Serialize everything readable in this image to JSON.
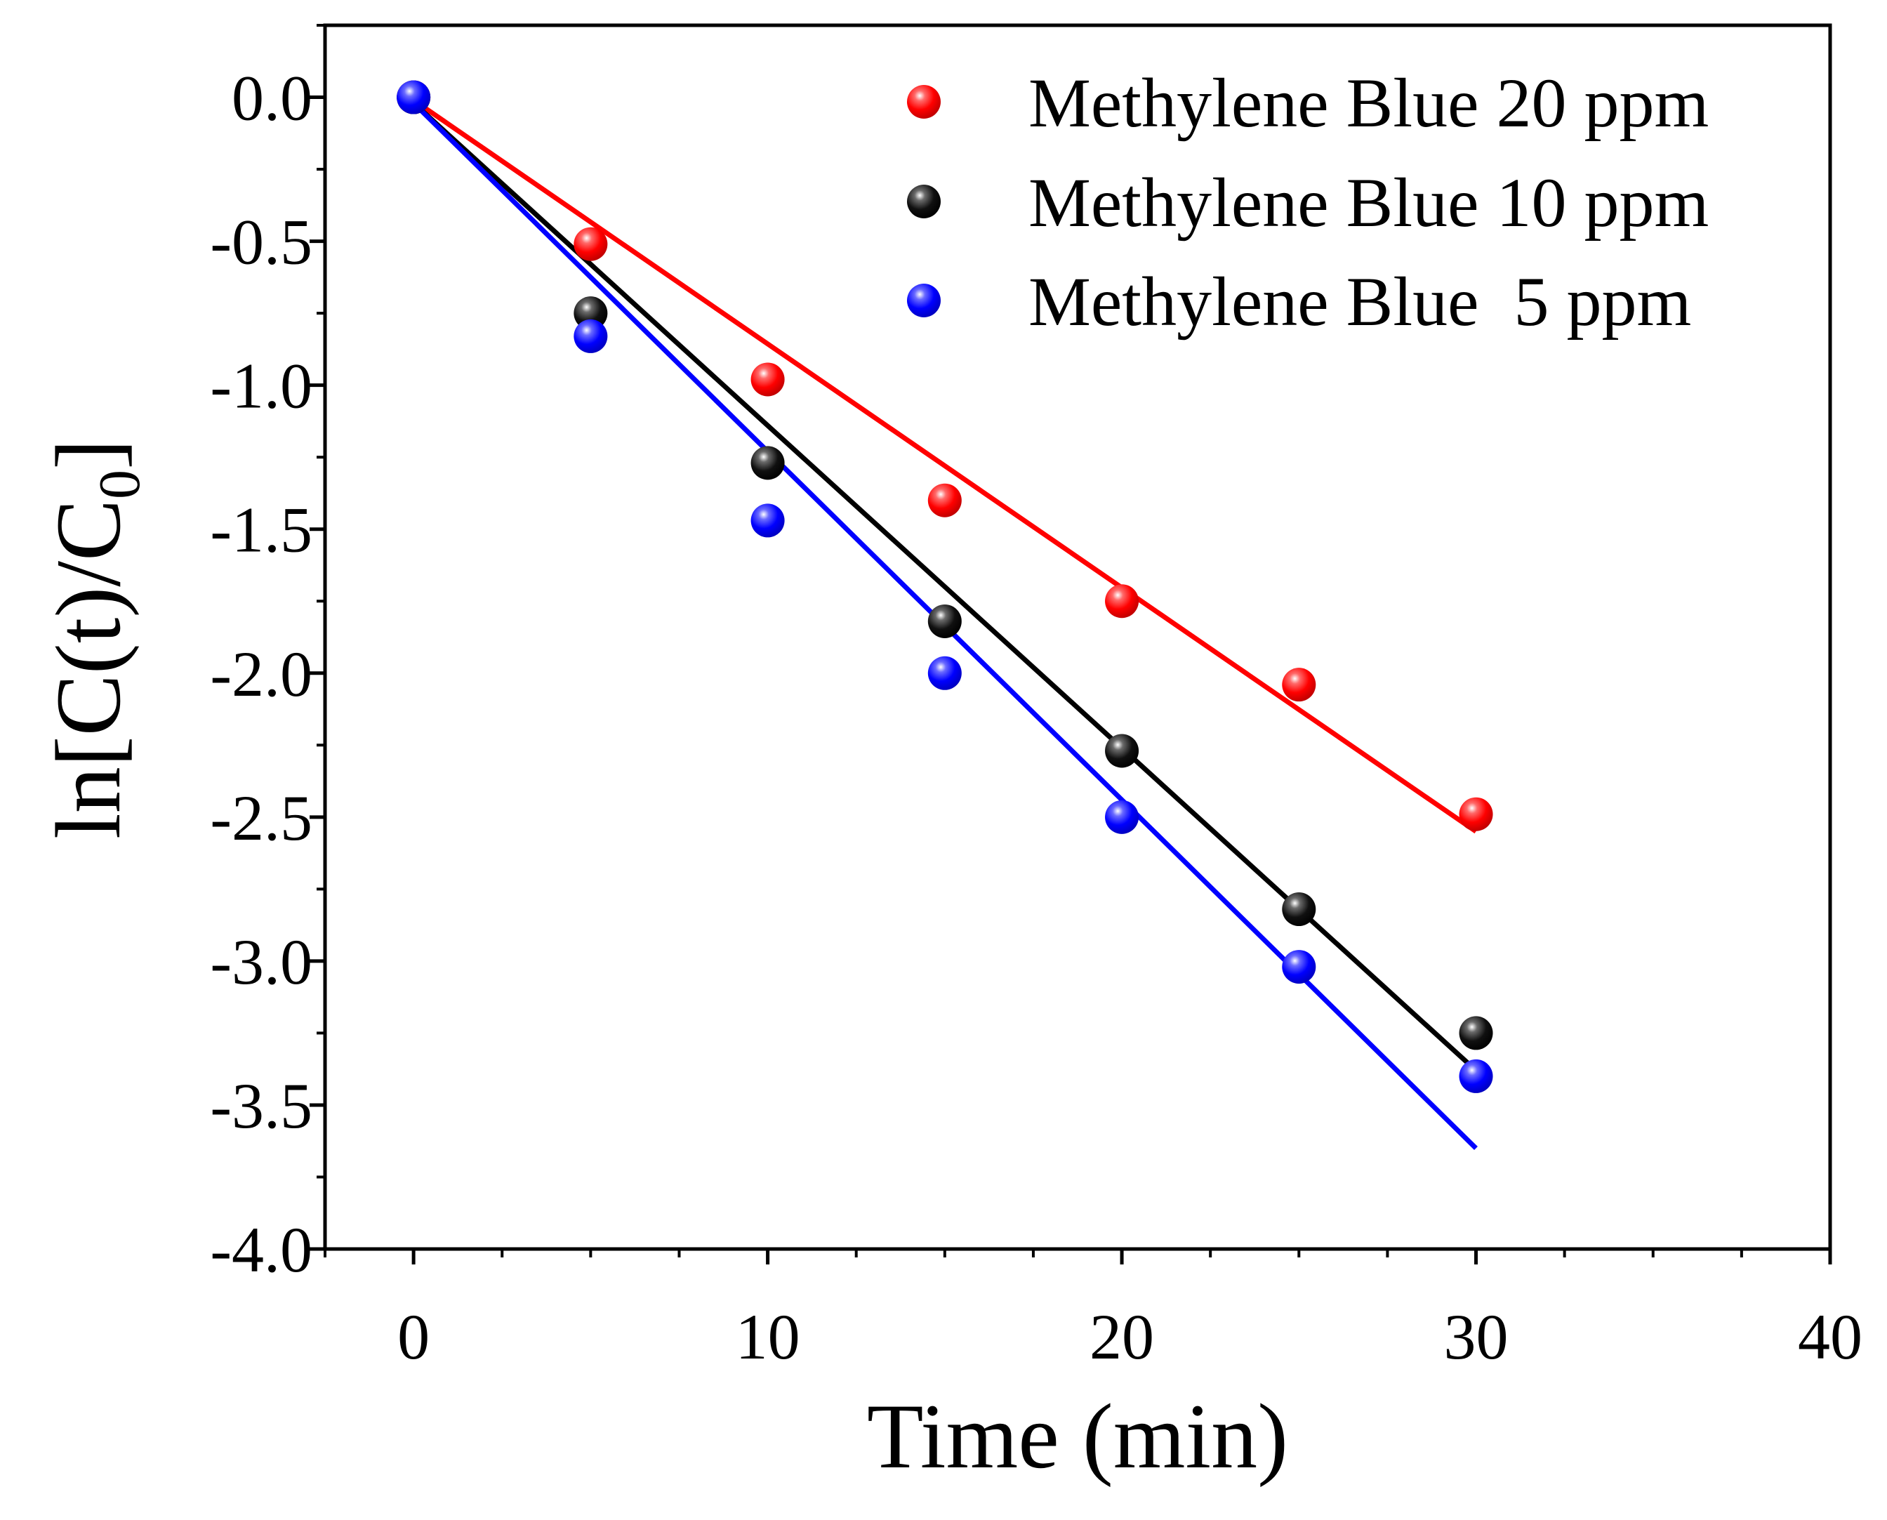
{
  "chart_data": {
    "type": "scatter",
    "title": "",
    "xlabel": "Time (min)",
    "ylabel": {
      "prefix": "ln[C(t)/C",
      "subscript": "0",
      "suffix": "]"
    },
    "xlim": [
      -2.5,
      40
    ],
    "ylim": [
      -4.0,
      0.25
    ],
    "x_ticks": [
      0,
      10,
      20,
      30,
      40
    ],
    "x_tick_labels": [
      "0",
      "10",
      "20",
      "30",
      "40"
    ],
    "y_ticks": [
      0.0,
      -0.5,
      -1.0,
      -1.5,
      -2.0,
      -2.5,
      -3.0,
      -3.5,
      -4.0
    ],
    "y_tick_labels": [
      "0.0",
      "-0.5",
      "-1.0",
      "-1.5",
      "-2.0",
      "-2.5",
      "-3.0",
      "-3.5",
      "-4.0"
    ],
    "grid": false,
    "legend_position": "top-right",
    "series": [
      {
        "name": "Methylene Blue 20 ppm",
        "color": "#ff0000",
        "x": [
          0,
          5,
          10,
          15,
          20,
          25,
          30
        ],
        "y": [
          0.0,
          -0.51,
          -0.98,
          -1.4,
          -1.75,
          -2.04,
          -2.49
        ],
        "fit": {
          "x": [
            0,
            30
          ],
          "y": [
            -0.01,
            -2.55
          ]
        }
      },
      {
        "name": "Methylene Blue 10 ppm",
        "color": "#000000",
        "x": [
          0,
          5,
          10,
          15,
          20,
          25,
          30
        ],
        "y": [
          0.0,
          -0.75,
          -1.27,
          -1.82,
          -2.27,
          -2.82,
          -3.25
        ],
        "fit": {
          "x": [
            0,
            5,
            10,
            15,
            20,
            25,
            30
          ],
          "y": [
            -0.02,
            -0.58,
            -1.14,
            -1.7,
            -2.26,
            -2.82,
            -3.38
          ]
        }
      },
      {
        "name": "Methylene Blue  5 ppm",
        "color": "#0000ff",
        "x": [
          0,
          5,
          10,
          15,
          20,
          25,
          30
        ],
        "y": [
          0.0,
          -0.83,
          -1.47,
          -2.0,
          -2.5,
          -3.02,
          -3.4
        ],
        "fit": {
          "x": [
            0,
            30
          ],
          "y": [
            -0.02,
            -3.65
          ]
        }
      }
    ]
  }
}
